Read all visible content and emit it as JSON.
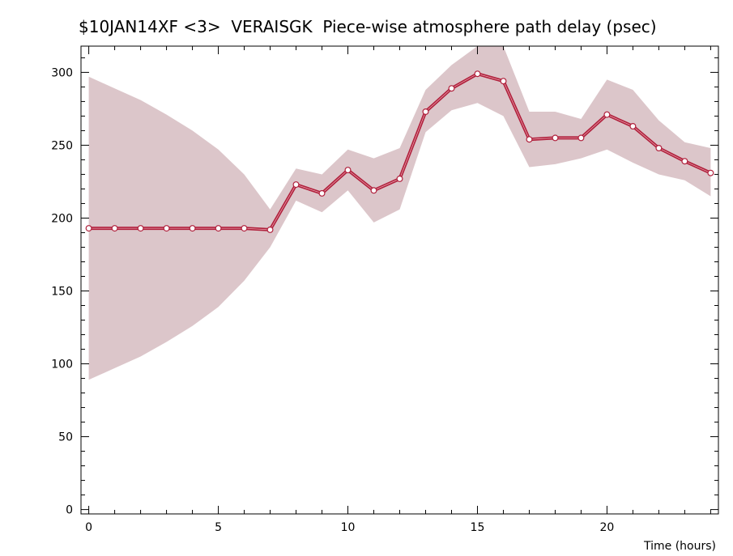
{
  "chart_data": {
    "type": "line",
    "title": "$10JAN14XF <3>  VERAISGK  Piece-wise atmosphere path delay (psec)",
    "xlabel": "Time (hours)",
    "ylabel": "",
    "xlim": [
      -0.3,
      24.3
    ],
    "ylim": [
      -3,
      318
    ],
    "x_ticks": [
      0,
      5,
      10,
      15,
      20
    ],
    "y_ticks": [
      0,
      50,
      100,
      150,
      200,
      250,
      300
    ],
    "grid": false,
    "colors": {
      "line": "#b0203c",
      "band": "#dcc6ca",
      "marker_fill": "#ffffff"
    },
    "series": [
      {
        "x": [
          0,
          1,
          2,
          3,
          4,
          5,
          6,
          7,
          8,
          9,
          10,
          11,
          12,
          13,
          14,
          15,
          16,
          17,
          18,
          19,
          20,
          21,
          22,
          23,
          24
        ],
        "y": [
          193,
          193,
          193,
          193,
          193,
          193,
          193,
          192,
          223,
          217,
          233,
          219,
          227,
          273,
          289,
          299,
          294,
          254,
          255,
          255,
          271,
          263,
          248,
          239,
          231
        ]
      }
    ],
    "band": {
      "x": [
        0,
        1,
        2,
        3,
        4,
        5,
        6,
        7,
        8,
        9,
        10,
        11,
        12,
        13,
        14,
        15,
        16,
        17,
        18,
        19,
        20,
        21,
        22,
        23,
        24
      ],
      "upper": [
        297,
        289,
        281,
        271,
        260,
        247,
        230,
        206,
        234,
        230,
        247,
        241,
        248,
        288,
        305,
        318,
        318,
        273,
        273,
        268,
        295,
        288,
        267,
        252,
        248
      ],
      "lower": [
        89,
        97,
        105,
        115,
        126,
        139,
        157,
        180,
        212,
        204,
        219,
        197,
        206,
        259,
        274,
        279,
        270,
        235,
        237,
        241,
        247,
        238,
        230,
        226,
        215
      ]
    }
  }
}
